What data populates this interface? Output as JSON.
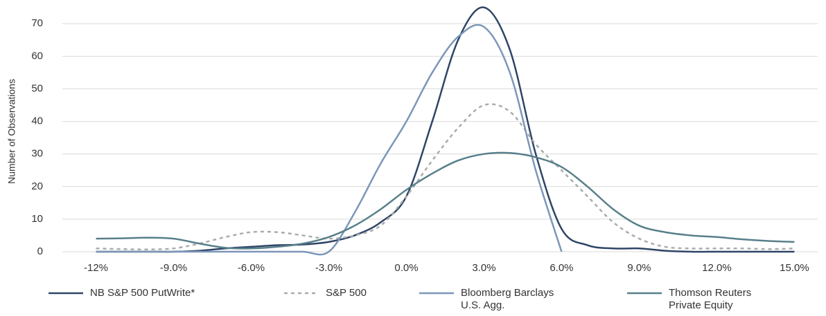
{
  "chart_data": {
    "type": "line",
    "y_label": "Number of Observations",
    "x": [
      -12,
      -11,
      -10,
      -9,
      -8,
      -7,
      -6,
      -5,
      -4,
      -3,
      -2,
      -1,
      0,
      1,
      2,
      3,
      4,
      5,
      6,
      7,
      8,
      9,
      10,
      11,
      12,
      13,
      14,
      15
    ],
    "xlim": [
      -13.3,
      15.9
    ],
    "xticks": [
      {
        "value": -12,
        "label": "-12%"
      },
      {
        "value": -9,
        "label": "-9.0%"
      },
      {
        "value": -6,
        "label": "-6.0%"
      },
      {
        "value": -3,
        "label": "-3.0%"
      },
      {
        "value": 0,
        "label": "0.0%"
      },
      {
        "value": 3,
        "label": "3.0%"
      },
      {
        "value": 6,
        "label": "6.0%"
      },
      {
        "value": 9,
        "label": "9.0%"
      },
      {
        "value": 12,
        "label": "12.0%"
      },
      {
        "value": 15,
        "label": "15.0%"
      }
    ],
    "ylim": [
      0,
      76
    ],
    "yticks": [
      0,
      10,
      20,
      30,
      40,
      50,
      60,
      70
    ],
    "grid": true,
    "smooth": true,
    "legend": "bottom",
    "series": [
      {
        "name": "NB S&P 500 PutWrite*",
        "color": "#2e4566",
        "dashed": false,
        "values": [
          0,
          0,
          0,
          0,
          0.3,
          1,
          1.5,
          2,
          2.2,
          3,
          5,
          9,
          17,
          40,
          65,
          75,
          62,
          30,
          7,
          2,
          1,
          1,
          0.3,
          0,
          0,
          0,
          0,
          0
        ]
      },
      {
        "name": "S&P 500",
        "color": "#a9abad",
        "dashed": true,
        "values": [
          1,
          0.8,
          0.7,
          1,
          2.5,
          4.5,
          6,
          6,
          5,
          4,
          5,
          8,
          17,
          28,
          38,
          45,
          43,
          33,
          25,
          17,
          9,
          4,
          1.5,
          1,
          1,
          1,
          0.8,
          1
        ]
      },
      {
        "name": "Bloomberg Barclays\nU.S. Agg.",
        "color": "#7b96b8",
        "dashed": false,
        "values": [
          0,
          0,
          0,
          0,
          0,
          0,
          0,
          0,
          0,
          0,
          12,
          27,
          40,
          55,
          66,
          69,
          55,
          25,
          0,
          null,
          null,
          null,
          null,
          null,
          null,
          null,
          null,
          null
        ]
      },
      {
        "name": "Thomson Reuters\nPrivate Equity",
        "color": "#587f8a",
        "dashed": false,
        "values": [
          4,
          4.1,
          4.3,
          4,
          2.5,
          1.2,
          1,
          1.5,
          2.5,
          4.5,
          8,
          13,
          19,
          24,
          28,
          30,
          30.3,
          29,
          26,
          20,
          13,
          8,
          6,
          5,
          4.5,
          3.8,
          3.3,
          3
        ]
      }
    ]
  }
}
